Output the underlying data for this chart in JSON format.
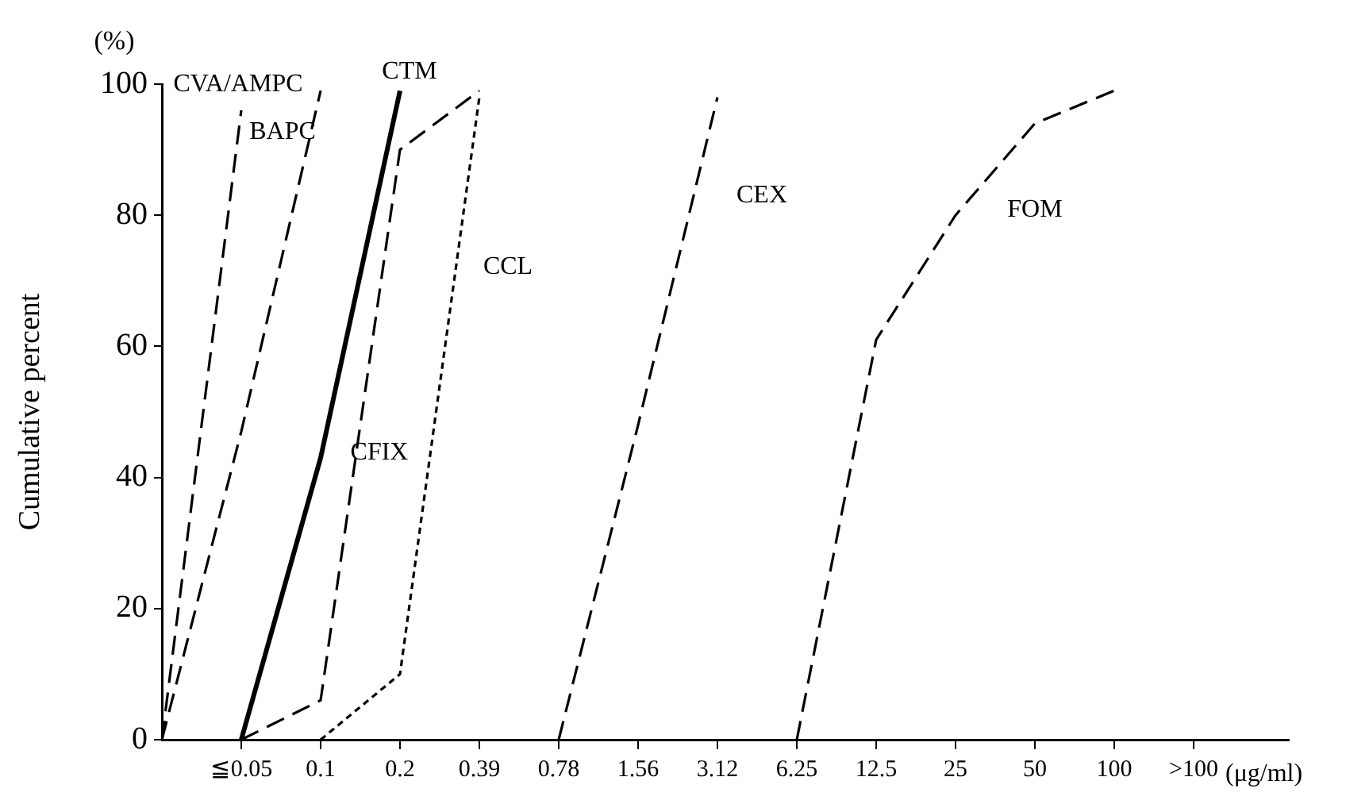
{
  "chart_data": {
    "type": "line",
    "ylabel": "Cumulative percent",
    "xlabel": "(μg/ml)",
    "categories": [
      null,
      "≦0.05",
      "0.1",
      "0.2",
      "0.39",
      "0.78",
      "1.56",
      "3.12",
      "6.25",
      "12.5",
      "25",
      "50",
      "100",
      ">100"
    ],
    "ylim": [
      0,
      100
    ],
    "yticks": [
      0,
      20,
      40,
      60,
      80,
      100
    ],
    "marker": "none",
    "series": [
      {
        "name": "CVA/AMPC",
        "color": "#000000",
        "line_style": "dashed",
        "values": [
          0,
          96,
          null,
          null,
          null,
          null,
          null,
          null,
          null,
          null,
          null,
          null,
          null,
          null
        ]
      },
      {
        "name": "BAPC",
        "color": "#000000",
        "line_style": "dashed",
        "values": [
          0,
          47,
          99,
          null,
          null,
          null,
          null,
          null,
          null,
          null,
          null,
          null,
          null,
          null
        ]
      },
      {
        "name": "CTM",
        "color": "#000000",
        "line_style": "solid",
        "values": [
          null,
          0,
          43,
          99,
          null,
          null,
          null,
          null,
          null,
          null,
          null,
          null,
          null,
          null
        ]
      },
      {
        "name": "CFIX",
        "color": "#000000",
        "line_style": "dashed",
        "values": [
          null,
          0,
          6,
          90,
          99,
          null,
          null,
          null,
          null,
          null,
          null,
          null,
          null,
          null
        ]
      },
      {
        "name": "CCL",
        "color": "#000000",
        "line_style": "dotted",
        "values": [
          null,
          null,
          0,
          10,
          98,
          null,
          null,
          null,
          null,
          null,
          null,
          null,
          null,
          null
        ]
      },
      {
        "name": "CEX",
        "color": "#000000",
        "line_style": "dashed",
        "values": [
          null,
          null,
          null,
          null,
          null,
          0,
          48,
          98,
          null,
          null,
          null,
          null,
          null,
          null
        ]
      },
      {
        "name": "FOM",
        "color": "#000000",
        "line_style": "dashed",
        "values": [
          null,
          null,
          null,
          null,
          null,
          null,
          null,
          null,
          0,
          61,
          80,
          94,
          99,
          null
        ]
      }
    ],
    "annotations": [
      "(%)"
    ]
  }
}
